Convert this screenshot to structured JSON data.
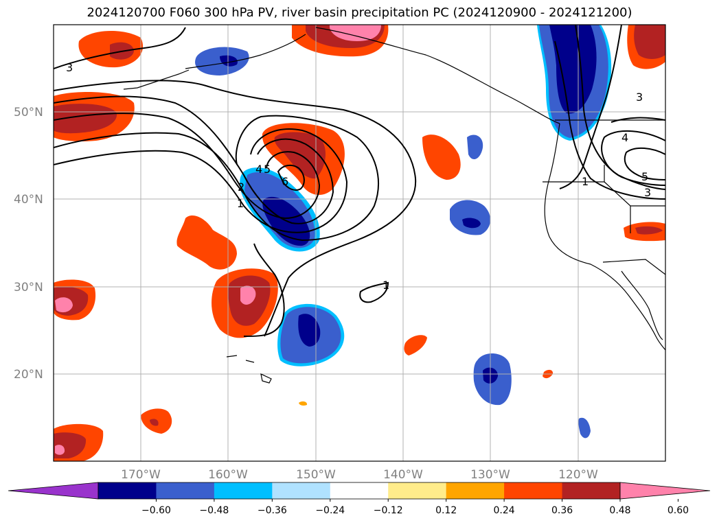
{
  "title": "2024120700 F060 300 hPa PV, river basin precipitation PC (2024120900 - 2024121200)",
  "map": {
    "lon_labels": [
      "170°W",
      "160°W",
      "150°W",
      "140°W",
      "130°W",
      "120°W"
    ],
    "lat_labels": [
      "50°N",
      "40°N",
      "30°N",
      "20°N"
    ],
    "gridlines": true,
    "contour_labels": [
      "3",
      "3",
      "4",
      "5",
      "6",
      "2",
      "1",
      "1",
      "1",
      "4",
      "5",
      "3"
    ]
  },
  "colorbar": {
    "ticks": [
      "−0.60",
      "−0.48",
      "−0.36",
      "−0.24",
      "−0.12",
      "0.12",
      "0.24",
      "0.36",
      "0.48",
      "0.60"
    ],
    "colors": [
      "#9933cc",
      "#00008b",
      "#3a5fcd",
      "#00bfff",
      "#b0e2ff",
      "#ffffff",
      "#ffec8b",
      "#ffa500",
      "#ff4500",
      "#b22222",
      "#ff82ab"
    ]
  }
}
